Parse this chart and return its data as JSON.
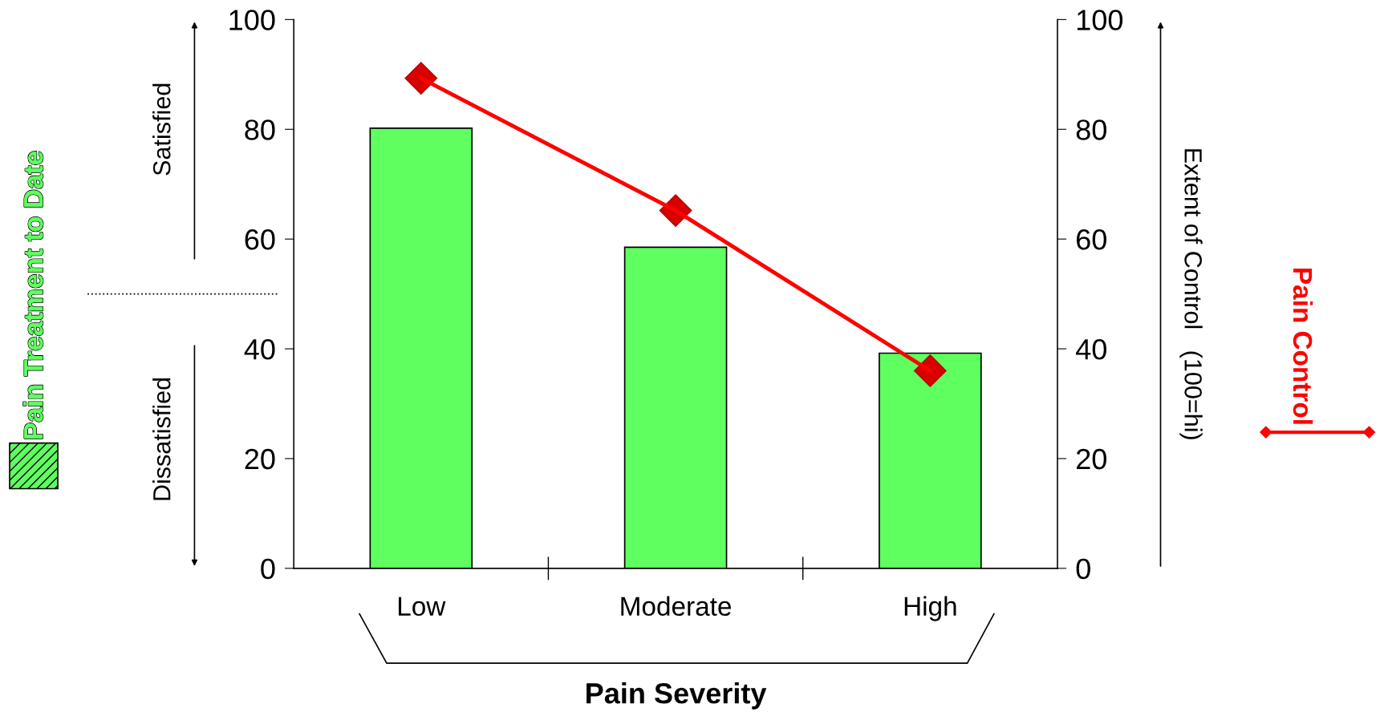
{
  "chart_data": {
    "type": "bar",
    "xlabel": "Pain Severity",
    "y2label": "Extent of Control   (100=hi)",
    "categories": [
      "Low",
      "Moderate",
      "High"
    ],
    "series": [
      {
        "name": "Pain Treatment to Date",
        "type": "bar",
        "color": "#5eff5e",
        "values": [
          80.2,
          58.5,
          39.2
        ]
      },
      {
        "name": "Pain Control",
        "type": "line",
        "axis": "y2",
        "color": "#ff0000",
        "marker": "diamond",
        "values": [
          89.3,
          65.2,
          36.0
        ]
      }
    ],
    "ylim": [
      0,
      100
    ],
    "yticks": [
      0,
      20,
      40,
      60,
      80,
      100
    ],
    "y2lim": [
      0,
      100
    ],
    "y2ticks": [
      0,
      20,
      40,
      60,
      80,
      100
    ],
    "annotations": [
      "Satisfied",
      "Dissatisfied"
    ],
    "grid": false,
    "legend": "left"
  }
}
